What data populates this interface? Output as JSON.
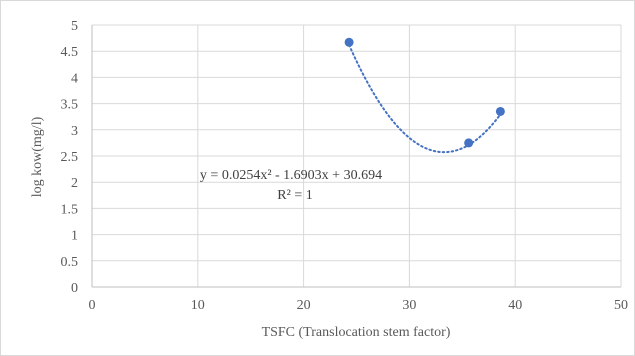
{
  "chart_data": {
    "type": "scatter",
    "title": "",
    "xlabel": "TSFC (Translocation stem factor)",
    "ylabel": "log kow(mg/l)",
    "xlim": [
      0,
      50
    ],
    "ylim": [
      0,
      5
    ],
    "x_ticks": [
      "0",
      "10",
      "20",
      "30",
      "40",
      "50"
    ],
    "y_ticks": [
      "0",
      "0.5",
      "1",
      "1.5",
      "2",
      "2.5",
      "3",
      "3.5",
      "4",
      "4.5",
      "5"
    ],
    "grid": true,
    "legend": "none",
    "series": [
      {
        "points": [
          {
            "x": 24.3,
            "y": 4.67
          },
          {
            "x": 35.6,
            "y": 2.75
          },
          {
            "x": 38.6,
            "y": 3.35
          }
        ]
      }
    ],
    "trendline": {
      "type": "polynomial-2",
      "coefficients": [
        0.0254,
        -1.6903,
        30.694
      ],
      "x_range": [
        24.3,
        38.6
      ],
      "style": "dotted"
    },
    "annotations": {
      "equation": "y = 0.0254x² - 1.6903x + 30.694",
      "r_squared": "R² = 1"
    },
    "colors": {
      "marker": "#4472c4",
      "trendline": "#4472c4",
      "grid": "#d9d9d9",
      "text": "#595959"
    }
  }
}
